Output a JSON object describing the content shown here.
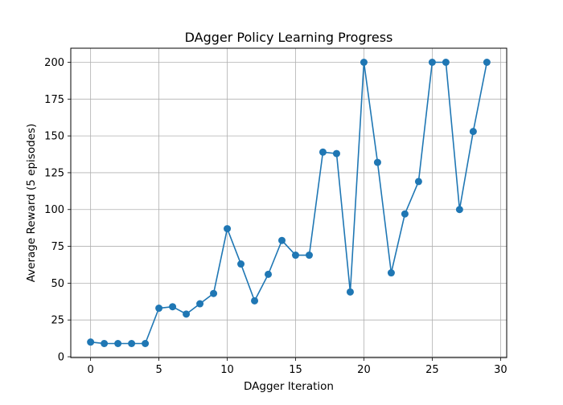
{
  "chart_data": {
    "type": "line",
    "title": "DAgger Policy Learning Progress",
    "xlabel": "DAgger Iteration",
    "ylabel": "Average Reward (5 episodes)",
    "xlim": [
      -1.45,
      30.45
    ],
    "ylim": [
      -0.55,
      209.55
    ],
    "xticks": [
      0,
      5,
      10,
      15,
      20,
      25,
      30
    ],
    "yticks": [
      0,
      25,
      50,
      75,
      100,
      125,
      150,
      175,
      200
    ],
    "grid": true,
    "line_color": "#1f77b4",
    "marker": "circle",
    "series": [
      {
        "x": [
          0,
          1,
          2,
          3,
          4,
          5,
          6,
          7,
          8,
          9,
          10,
          11,
          12,
          13,
          14,
          15,
          16,
          17,
          18,
          19,
          20,
          21,
          22,
          23,
          24,
          25,
          26,
          27,
          28,
          29
        ],
        "values": [
          10,
          9,
          9,
          9,
          9,
          33,
          34,
          29,
          36,
          43,
          87,
          63,
          38,
          56,
          79,
          69,
          69,
          139,
          138,
          44,
          200,
          132,
          57,
          97,
          119,
          200,
          200,
          100,
          153,
          200
        ]
      }
    ]
  }
}
